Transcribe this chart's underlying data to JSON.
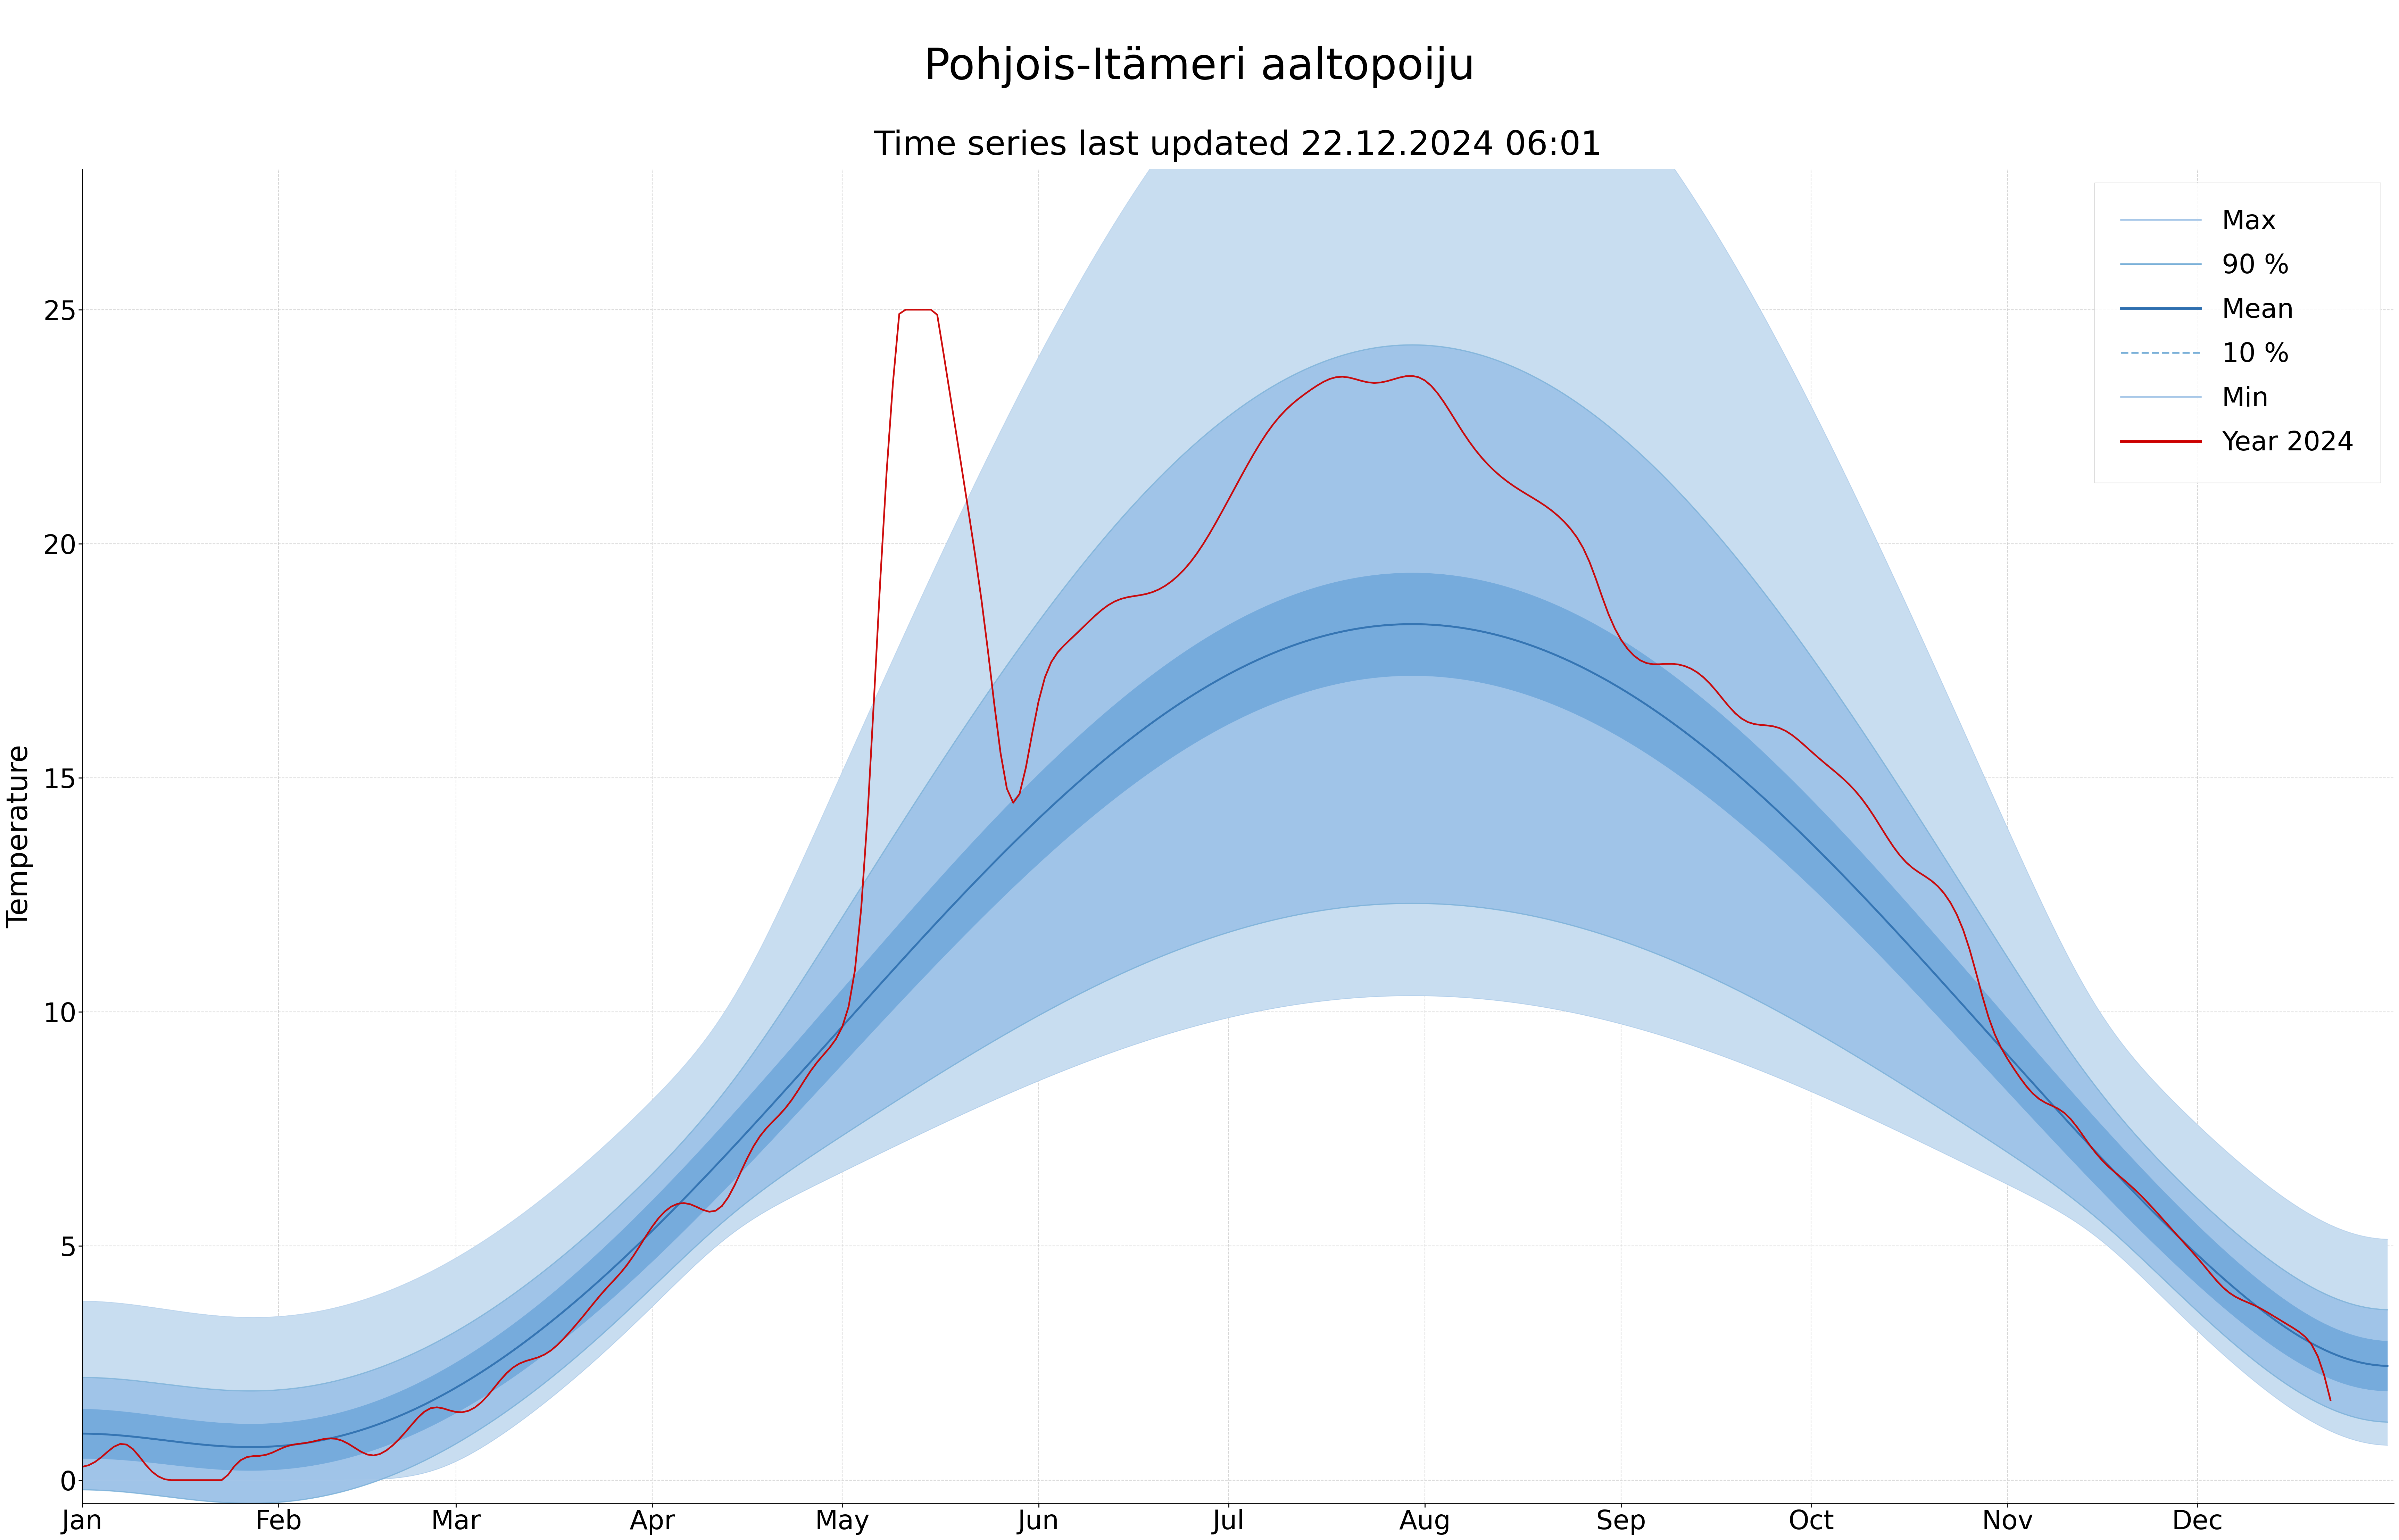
{
  "title": "Pohjois-Itämeri aaltopoiju",
  "subtitle": "Time series last updated 22.12.2024 06:01",
  "ylabel": "Temperature",
  "ylim": [
    -0.5,
    28
  ],
  "yticks": [
    0,
    5,
    10,
    15,
    20,
    25
  ],
  "months": [
    "Jan",
    "Feb",
    "Mar",
    "Apr",
    "May",
    "Jun",
    "Jul",
    "Aug",
    "Sep",
    "Oct",
    "Nov",
    "Dec"
  ],
  "color_max_fill": "#c8ddf0",
  "color_90_fill": "#a0c4e8",
  "color_mean_fill": "#5b9bd5",
  "color_mean_line": "#2e6faf",
  "color_year2024": "#cc0000",
  "background_color": "#ffffff",
  "grid_color": "#cccccc",
  "title_fontsize": 36,
  "subtitle_fontsize": 28,
  "label_fontsize": 24,
  "tick_fontsize": 22,
  "legend_fontsize": 22
}
